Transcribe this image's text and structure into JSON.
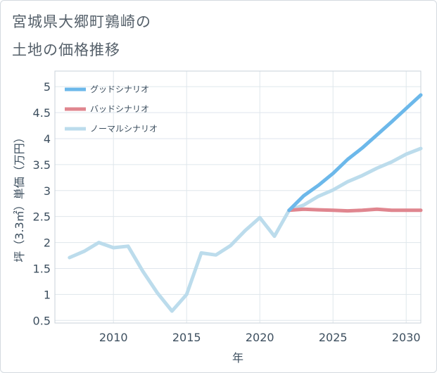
{
  "title": {
    "line1": "宮城県大郷町鶉崎の",
    "line2": "土地の価格推移"
  },
  "chart_data": {
    "type": "line",
    "title": "宮城県大郷町鶉崎の土地の価格推移",
    "xlabel": "年",
    "ylabel": "坪（3.3㎡）単価（万円）",
    "xlim": [
      2006,
      2031
    ],
    "ylim": [
      0.45,
      5.3
    ],
    "xticks": [
      2010,
      2015,
      2020,
      2025,
      2030
    ],
    "yticks": [
      0.5,
      1,
      1.5,
      2,
      2.5,
      3,
      3.5,
      4,
      4.5,
      5
    ],
    "ytick_labels": [
      "0.5",
      "1",
      "1.5",
      "2",
      "2.5",
      "3",
      "3.5",
      "4",
      "4.5",
      "5"
    ],
    "grid": true,
    "legend_position": "top-left",
    "series": [
      {
        "name": "グッドシナリオ",
        "color": "#6cb8ea",
        "x": [
          2022,
          2023,
          2024,
          2025,
          2026,
          2027,
          2028,
          2029,
          2030,
          2031
        ],
        "values": [
          2.62,
          2.9,
          3.1,
          3.33,
          3.6,
          3.82,
          4.07,
          4.32,
          4.58,
          4.84
        ]
      },
      {
        "name": "バッドシナリオ",
        "color": "#e0868f",
        "x": [
          2022,
          2023,
          2024,
          2025,
          2026,
          2027,
          2028,
          2029,
          2030,
          2031
        ],
        "values": [
          2.62,
          2.64,
          2.63,
          2.62,
          2.61,
          2.62,
          2.64,
          2.62,
          2.62,
          2.62
        ]
      },
      {
        "name": "ノーマルシナリオ",
        "color": "#bcdcec",
        "x": [
          2007,
          2008,
          2009,
          2010,
          2011,
          2012,
          2013,
          2014,
          2015,
          2016,
          2017,
          2018,
          2019,
          2020,
          2021,
          2022,
          2023,
          2024,
          2025,
          2026,
          2027,
          2028,
          2029,
          2030,
          2031
        ],
        "values": [
          1.71,
          1.83,
          2.0,
          1.9,
          1.93,
          1.45,
          1.03,
          0.68,
          1.0,
          1.8,
          1.76,
          1.94,
          2.23,
          2.48,
          2.12,
          2.62,
          2.72,
          2.89,
          3.01,
          3.17,
          3.29,
          3.43,
          3.55,
          3.7,
          3.81
        ]
      }
    ]
  }
}
